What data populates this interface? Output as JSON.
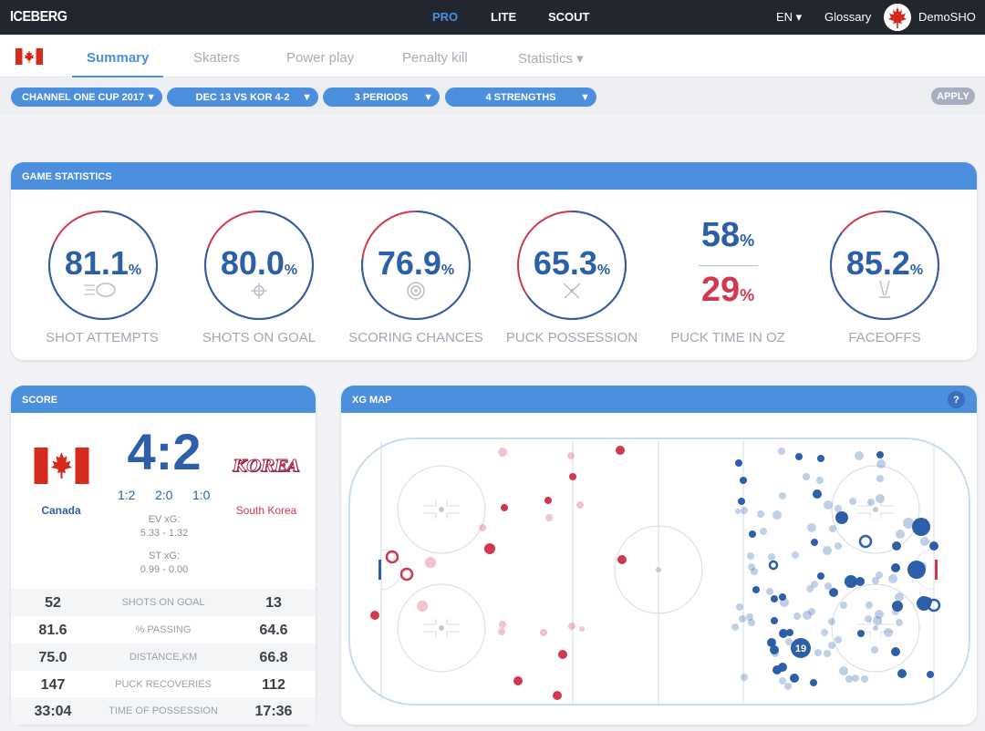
{
  "topbar": {
    "logo": "ICEBERG",
    "products": [
      "PRO",
      "LITE",
      "SCOUT"
    ],
    "language": "EN ▾",
    "glossary": "Glossary",
    "user": "DemoSHO"
  },
  "tabs": [
    "Summary",
    "Skaters",
    "Power play",
    "Penalty kill",
    "Statistics ▾"
  ],
  "filters": {
    "tournament": "CHANNEL ONE CUP 2017",
    "game": "DEC 13 VS KOR 4-2",
    "periods": "3 PERIODS",
    "strengths": "4 STRENGTHS",
    "apply": "APPLY"
  },
  "game_statistics": {
    "title": "GAME STATISTICS",
    "items": [
      {
        "value": "81.1",
        "unit": "%",
        "label": "SHOT ATTEMPTS",
        "icon": "puck-icon",
        "fraction": 0.811
      },
      {
        "value": "80.0",
        "unit": "%",
        "label": "SHOTS ON GOAL",
        "icon": "crosshair-icon",
        "fraction": 0.8
      },
      {
        "value": "76.9",
        "unit": "%",
        "label": "SCORING CHANCES",
        "icon": "target-icon",
        "fraction": 0.769
      },
      {
        "value": "65.3",
        "unit": "%",
        "label": "PUCK POSSESSION",
        "icon": "crossed-sticks-icon",
        "fraction": 0.653
      },
      {
        "label": "PUCK TIME IN OZ",
        "top": "58",
        "bottom": "29",
        "unit": "%"
      },
      {
        "value": "85.2",
        "unit": "%",
        "label": "FACEOFFS",
        "icon": "faceoff-sticks-icon",
        "fraction": 0.852
      }
    ]
  },
  "score": {
    "title": "SCORE",
    "home": "Canada",
    "away": "South Korea",
    "away_logo_text": "KOREA",
    "result": "4:2",
    "periods": [
      "1:2",
      "2:0",
      "1:0"
    ],
    "ev_xg_label": "EV xG:",
    "ev_xg": "5.33 - 1.32",
    "st_xg_label": "ST xG:",
    "st_xg": "0.99 - 0.00",
    "rows": [
      {
        "home": "52",
        "label": "SHOTS ON GOAL",
        "away": "13"
      },
      {
        "home": "81.6",
        "label": "% PASSING",
        "away": "64.6"
      },
      {
        "home": "75.0",
        "label": "DISTANCE,KM",
        "away": "66.8"
      },
      {
        "home": "147",
        "label": "PUCK RECOVERIES",
        "away": "112"
      },
      {
        "home": "33:04",
        "label": "TIME OF POSSESSION",
        "away": "17:36"
      }
    ]
  },
  "xg_map": {
    "title": "XG MAP",
    "help": "?",
    "highlight_number": "19",
    "colors": {
      "canada": "#2c5fa8",
      "korea": "#d1384f",
      "accent": "#4b8fdd"
    }
  }
}
